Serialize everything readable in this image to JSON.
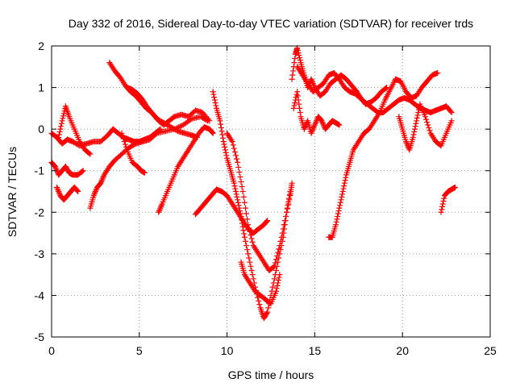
{
  "chart_data": {
    "type": "scatter",
    "title": "Day 332 of 2016, Sidereal Day-to-day VTEC variation (SDTVAR) for receiver trds",
    "xlabel": "GPS time / hours",
    "ylabel": "SDTVAR / TECUs",
    "xlim": [
      0,
      25
    ],
    "ylim": [
      -5,
      2
    ],
    "x_ticks": [
      0,
      5,
      10,
      15,
      20,
      25
    ],
    "y_ticks": [
      -5,
      -4,
      -3,
      -2,
      -1,
      0,
      1,
      2
    ],
    "grid": true,
    "legend": "none",
    "marker": "+",
    "color": "#ff0000",
    "tracks": [
      {
        "x": [
          0.0,
          0.3,
          0.6,
          0.9,
          1.2,
          1.6,
          2.0,
          2.4,
          2.8,
          3.2,
          3.5
        ],
        "y": [
          -0.1,
          -0.2,
          -0.35,
          -0.25,
          -0.3,
          -0.4,
          -0.35,
          -0.3,
          -0.3,
          -0.15,
          0.0
        ]
      },
      {
        "x": [
          0.0,
          0.2,
          0.4,
          0.6,
          0.8,
          1.0,
          1.2,
          1.5,
          1.8
        ],
        "y": [
          -0.8,
          -0.9,
          -1.1,
          -1.0,
          -0.9,
          -1.05,
          -1.1,
          -1.1,
          -1.0
        ]
      },
      {
        "x": [
          0.3,
          0.5,
          0.7,
          0.9,
          1.1,
          1.3,
          1.5
        ],
        "y": [
          -1.4,
          -1.6,
          -1.7,
          -1.6,
          -1.5,
          -1.4,
          -1.5
        ]
      },
      {
        "x": [
          0.4,
          0.6,
          0.8,
          1.0,
          1.3,
          1.6,
          1.9,
          2.2
        ],
        "y": [
          -0.2,
          0.2,
          0.55,
          0.3,
          0.0,
          -0.3,
          -0.5,
          -0.6
        ]
      },
      {
        "x": [
          2.2,
          2.4,
          2.6,
          2.8,
          3.0,
          3.3,
          3.6,
          4.0,
          4.4,
          4.8,
          5.2,
          5.6,
          6.0,
          6.5,
          7.0,
          7.5,
          8.0,
          8.5,
          8.9
        ],
        "y": [
          -1.9,
          -1.6,
          -1.4,
          -1.3,
          -1.1,
          -0.9,
          -0.75,
          -0.6,
          -0.45,
          -0.35,
          -0.3,
          -0.25,
          -0.1,
          -0.05,
          0.0,
          0.1,
          0.25,
          0.3,
          0.2
        ]
      },
      {
        "x": [
          3.3,
          3.6,
          3.9,
          4.2,
          4.5,
          4.8,
          5.1,
          5.4,
          5.7,
          6.0,
          6.4,
          6.8,
          7.2,
          7.6,
          8.0,
          8.3
        ],
        "y": [
          1.6,
          1.4,
          1.25,
          1.05,
          0.9,
          0.8,
          0.65,
          0.5,
          0.4,
          0.25,
          0.15,
          0.05,
          -0.05,
          -0.1,
          -0.15,
          -0.2
        ]
      },
      {
        "x": [
          3.5,
          3.8,
          4.1,
          4.4,
          4.7,
          5.0,
          5.3,
          5.6,
          5.9,
          6.2
        ],
        "y": [
          0.0,
          -0.1,
          -0.2,
          -0.25,
          -0.3,
          -0.3,
          -0.25,
          -0.2,
          -0.1,
          0.0
        ]
      },
      {
        "x": [
          4.3,
          4.6,
          4.9,
          5.2,
          5.5,
          5.8,
          6.1,
          6.4,
          6.7,
          7.0,
          7.4,
          7.8,
          8.2,
          8.6,
          9.0
        ],
        "y": [
          1.0,
          0.95,
          0.85,
          0.7,
          0.5,
          0.35,
          0.2,
          0.1,
          0.2,
          0.3,
          0.35,
          0.3,
          0.45,
          0.4,
          0.2
        ]
      },
      {
        "x": [
          4.0,
          4.3,
          4.6,
          4.9,
          5.1,
          5.3
        ],
        "y": [
          -0.1,
          -0.5,
          -0.8,
          -0.9,
          -1.0,
          -1.05
        ]
      },
      {
        "x": [
          6.1,
          6.3,
          6.6,
          6.9,
          7.2,
          7.5,
          7.8,
          8.1,
          8.4,
          8.7,
          9.0,
          9.2
        ],
        "y": [
          -2.0,
          -1.8,
          -1.5,
          -1.2,
          -0.9,
          -0.7,
          -0.5,
          -0.3,
          -0.1,
          0.05,
          0.0,
          -0.1
        ]
      },
      {
        "x": [
          8.2,
          8.5,
          8.8,
          9.1,
          9.4,
          9.7,
          10.0,
          10.3,
          10.6,
          10.9,
          11.2,
          11.5,
          11.8,
          12.1,
          12.3
        ],
        "y": [
          -2.05,
          -1.9,
          -1.75,
          -1.6,
          -1.45,
          -1.5,
          -1.6,
          -1.8,
          -2.0,
          -2.2,
          -2.4,
          -2.5,
          -2.4,
          -2.3,
          -2.2
        ]
      },
      {
        "x": [
          9.2,
          9.4,
          9.6,
          9.8,
          10.0,
          10.2,
          10.4,
          10.6,
          10.8,
          11.0,
          11.3,
          11.6,
          11.9,
          12.1,
          12.3,
          12.6,
          12.9,
          13.2,
          13.4,
          13.6
        ],
        "y": [
          0.9,
          0.5,
          0.2,
          -0.3,
          -0.7,
          -1.0,
          -1.3,
          -1.7,
          -2.1,
          -2.6,
          -3.2,
          -3.8,
          -4.3,
          -4.55,
          -4.4,
          -3.8,
          -3.2,
          -2.6,
          -2.0,
          -1.5
        ]
      },
      {
        "x": [
          10.0,
          10.3,
          10.6,
          10.9,
          11.2,
          11.5,
          11.8,
          12.1,
          12.4,
          12.7,
          13.0,
          13.3,
          13.6,
          13.7
        ],
        "y": [
          -0.1,
          -0.3,
          -0.8,
          -1.5,
          -2.3,
          -2.8,
          -3.0,
          -3.2,
          -3.4,
          -3.3,
          -2.8,
          -2.2,
          -1.6,
          -1.3
        ]
      },
      {
        "x": [
          10.8,
          11.0,
          11.3,
          11.6,
          11.9,
          12.2,
          12.5,
          12.8,
          13.0
        ],
        "y": [
          -3.2,
          -3.5,
          -3.7,
          -3.9,
          -4.0,
          -4.1,
          -4.2,
          -3.9,
          -3.5
        ]
      },
      {
        "x": [
          13.7,
          13.9,
          14.0,
          14.2,
          14.4,
          14.6,
          14.8,
          15.0,
          15.3,
          15.6,
          15.9,
          16.2,
          16.5,
          16.8,
          17.1,
          17.4,
          17.7,
          18.0,
          18.3,
          18.6,
          18.9,
          19.2,
          19.5,
          19.8,
          20.1,
          20.4,
          20.7,
          21.0,
          21.3,
          21.6,
          21.9,
          22.2,
          22.5,
          22.8
        ],
        "y": [
          1.2,
          1.8,
          1.95,
          1.6,
          1.3,
          1.0,
          1.2,
          1.0,
          0.8,
          0.9,
          1.1,
          1.2,
          1.3,
          1.2,
          1.05,
          0.9,
          0.7,
          0.6,
          0.5,
          0.4,
          0.4,
          0.5,
          0.6,
          0.7,
          0.75,
          0.7,
          0.6,
          0.5,
          0.45,
          0.4,
          0.45,
          0.5,
          0.55,
          0.4
        ]
      },
      {
        "x": [
          13.8,
          14.0,
          14.2,
          14.4,
          14.6,
          14.8,
          15.0,
          15.2,
          15.4,
          15.6,
          15.8,
          16.0,
          16.2,
          16.4
        ],
        "y": [
          0.5,
          0.9,
          0.3,
          0.0,
          0.2,
          -0.1,
          0.1,
          0.3,
          0.2,
          0.0,
          0.1,
          0.2,
          0.15,
          0.1
        ]
      },
      {
        "x": [
          14.0,
          14.3,
          14.6,
          14.9,
          15.2,
          15.5,
          15.8,
          16.1,
          16.4,
          16.7,
          17.0,
          17.3,
          17.6,
          17.9,
          18.2,
          18.5,
          18.8,
          19.1
        ],
        "y": [
          1.5,
          1.3,
          1.1,
          0.9,
          1.0,
          1.1,
          1.3,
          1.35,
          1.2,
          1.0,
          0.9,
          0.85,
          0.75,
          0.6,
          0.65,
          0.75,
          0.9,
          1.0
        ]
      },
      {
        "x": [
          15.8,
          16.0,
          16.2,
          16.4,
          16.6,
          16.8,
          17.0,
          17.2,
          17.5,
          17.8,
          18.1,
          18.4,
          18.7,
          19.0,
          19.3,
          19.6,
          19.9,
          20.2,
          20.5,
          20.8,
          21.1,
          21.4,
          21.7,
          22.0
        ],
        "y": [
          -2.6,
          -2.6,
          -2.3,
          -1.9,
          -1.5,
          -1.1,
          -0.8,
          -0.5,
          -0.3,
          -0.1,
          0.0,
          0.2,
          0.4,
          0.7,
          0.95,
          1.2,
          1.15,
          0.9,
          0.75,
          0.8,
          1.0,
          1.15,
          1.3,
          1.35
        ]
      },
      {
        "x": [
          19.8,
          20.0,
          20.2,
          20.4,
          20.6,
          20.8,
          21.0,
          21.3,
          21.6,
          21.9,
          22.2,
          22.5,
          22.8
        ],
        "y": [
          0.3,
          0.0,
          -0.3,
          -0.5,
          -0.2,
          0.2,
          0.6,
          0.3,
          -0.1,
          -0.3,
          -0.4,
          -0.1,
          0.2
        ]
      },
      {
        "x": [
          22.2,
          22.4,
          22.6,
          22.8,
          23.0
        ],
        "y": [
          -2.0,
          -1.6,
          -1.5,
          -1.45,
          -1.4
        ]
      }
    ]
  }
}
